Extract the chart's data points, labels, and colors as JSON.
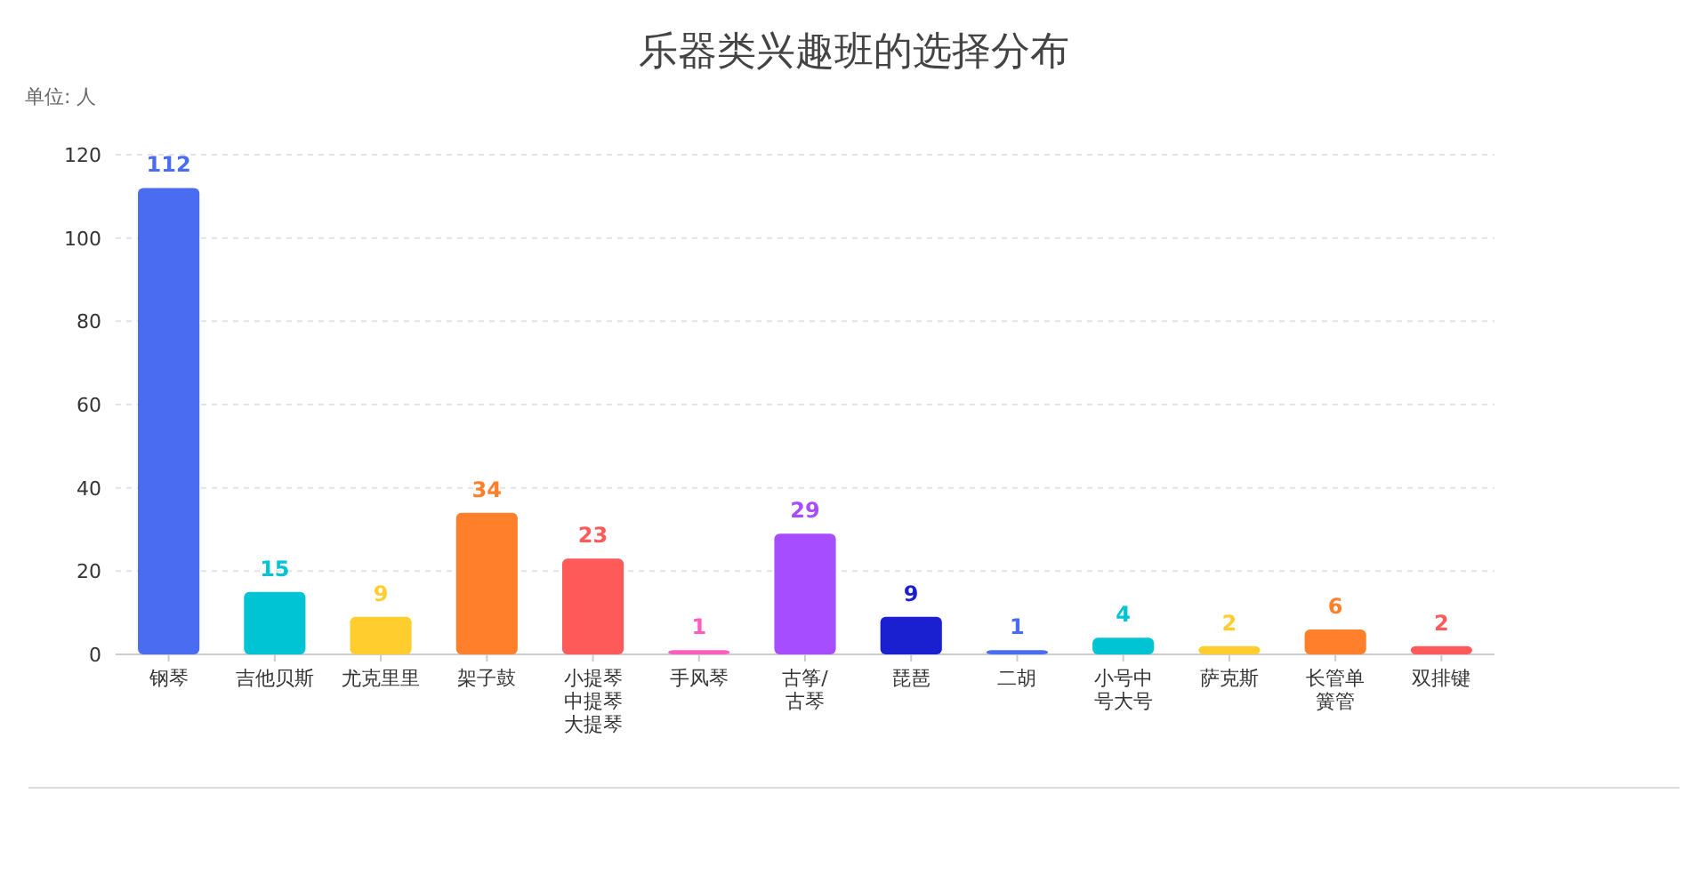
{
  "chart_data": {
    "type": "bar",
    "title": "乐器类兴趣班的选择分布",
    "ylabel": "单位: 人",
    "categories": [
      "钢琴",
      "吉他贝斯",
      "尤克里里",
      "架子鼓",
      "小提琴中提琴大提琴",
      "手风琴",
      "古筝/古琴",
      "琵琶",
      "二胡",
      "小号中号大号",
      "萨克斯",
      "长管单簧管",
      "双排键"
    ],
    "values": [
      112,
      15,
      9,
      34,
      23,
      1,
      29,
      9,
      1,
      4,
      2,
      6,
      2
    ],
    "colors": [
      "#4a6cf0",
      "#00c4d4",
      "#ffcd2e",
      "#ff7f2a",
      "#ff5a5a",
      "#ff5cc0",
      "#a64dff",
      "#1a1fd0",
      "#4a6cf0",
      "#00c4d4",
      "#ffcd2e",
      "#ff7f2a",
      "#ff5a5a"
    ],
    "ylim": [
      0,
      120
    ],
    "yticks": [
      0,
      20,
      40,
      60,
      80,
      100,
      120
    ],
    "grid": "y",
    "data_labels": true
  }
}
